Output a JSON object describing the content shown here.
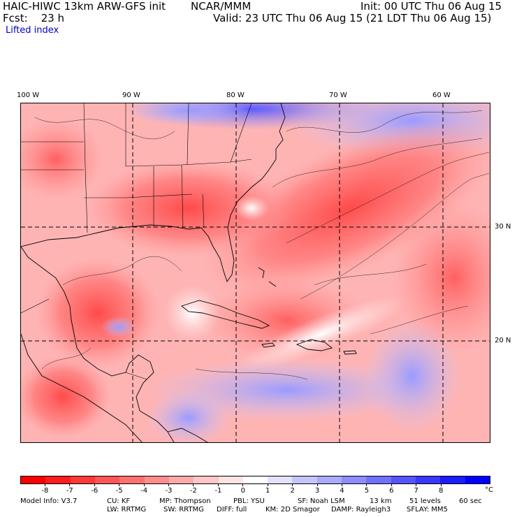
{
  "header": {
    "model": "HAIC-HIWC 13km ARW-GFS init",
    "org": "NCAR/MMM",
    "init": "Init: 00 UTC Thu 06 Aug 15",
    "fcst": "Fcst:    23 h",
    "valid": "Valid: 23 UTC Thu 06 Aug 15 (21 LDT Thu 06 Aug 15)",
    "field": "Lifted index"
  },
  "map": {
    "lon_labels": [
      "100 W",
      "90 W",
      "80 W",
      "70 W",
      "60 W"
    ],
    "lat_labels": [
      "30 N",
      "20 N"
    ]
  },
  "colorbar": {
    "ticks": [
      "-8",
      "-7",
      "-6",
      "-5",
      "-4",
      "-3",
      "-2",
      "-1",
      "0",
      "1",
      "2",
      "3",
      "4",
      "5",
      "6",
      "7",
      "8"
    ],
    "unit": "°C",
    "colors": [
      "#ff0000",
      "#ff1c1c",
      "#ff3838",
      "#ff5555",
      "#ff7171",
      "#ff8d8d",
      "#ffaaaa",
      "#ffc6c6",
      "#ffe2e2",
      "#ffffff",
      "#e2e2ff",
      "#c6c6ff",
      "#aaaaff",
      "#8d8dff",
      "#7171ff",
      "#5555ff",
      "#3838ff",
      "#1c1cff",
      "#0000ff"
    ]
  },
  "footer": {
    "model_info": "Model Info: V3.7",
    "cu": "CU: KF",
    "mp": "MP: Thompson",
    "pbl": "PBL: YSU",
    "sf": "SF: Noah LSM",
    "res": "13 km",
    "levels": "51 levels",
    "dt": "60 sec",
    "lw": "LW: RRTMG",
    "sw": "SW: RRTMG",
    "diff": "DIFF: full",
    "km": "KM: 2D Smagor",
    "damp": "DAMP: Rayleigh3",
    "sflay": "SFLAY: MM5"
  }
}
